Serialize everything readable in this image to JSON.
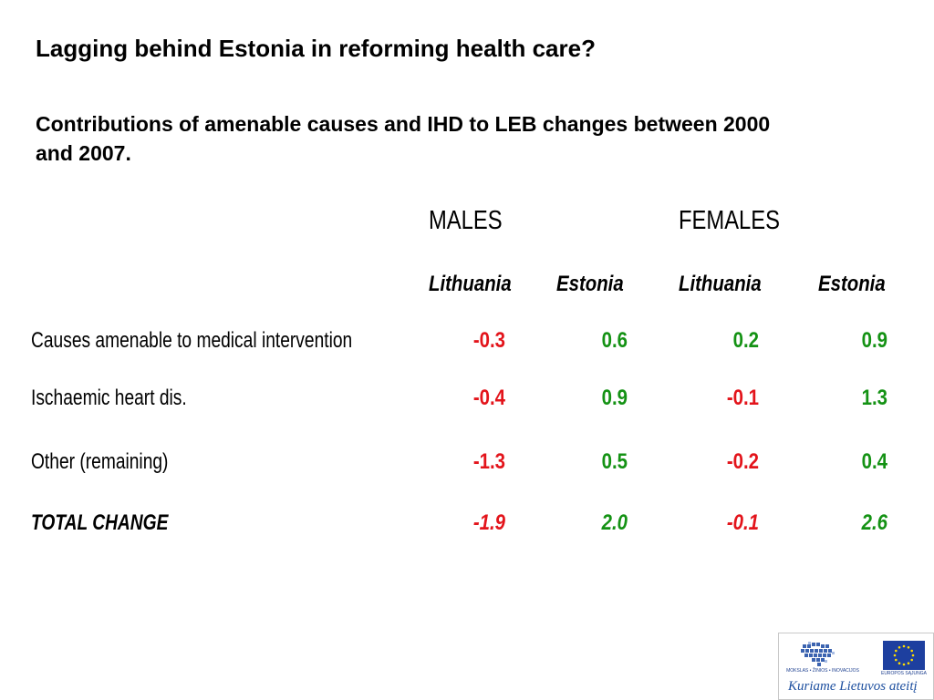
{
  "slide": {
    "title": "Lagging behind Estonia in reforming health care?",
    "subtitle": "Contributions of amenable causes and IHD to LEB changes between 2000 and 2007."
  },
  "table": {
    "group_headers": [
      "MALES",
      "FEMALES"
    ],
    "column_headers": [
      "Lithuania",
      "Estonia",
      "Lithuania",
      "Estonia"
    ],
    "rows": [
      {
        "label": "Causes amenable to medical intervention",
        "values": [
          "-0.3",
          "0.6",
          "0.2",
          "0.9"
        ]
      },
      {
        "label": "Ischaemic heart dis.",
        "values": [
          "-0.4",
          "0.9",
          "-0.1",
          "1.3"
        ]
      },
      {
        "label": "Other (remaining)",
        "values": [
          "-1.3",
          "0.5",
          "-0.2",
          "0.4"
        ]
      },
      {
        "label": "TOTAL CHANGE",
        "values": [
          "-1.9",
          "2.0",
          "-0.1",
          "2.6"
        ]
      }
    ],
    "colors": {
      "negative": "#e3141b",
      "positive": "#149214"
    }
  },
  "footer_logo": {
    "fund_text": "MOKSLAS • ŽINIOS • INOVACIJOS",
    "eu_text": "EUROPOS SĄJUNGA",
    "slogan": "Kuriame Lietuvos ateitį"
  }
}
